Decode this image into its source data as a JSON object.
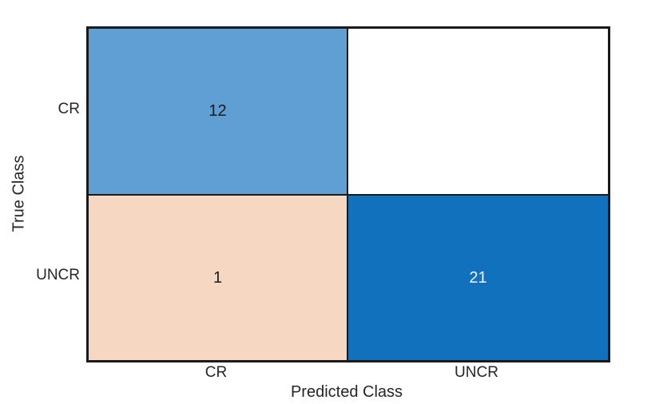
{
  "colors": {
    "background": "#ffffff",
    "grid_line": "#1a1a1a",
    "axis_text": "#262626",
    "diagonal_base_blue": "#1271bc",
    "diagonal_light_blue": "#5f9fd4",
    "offdiagonal_peach": "#f6d7c1",
    "empty_cell_white": "#ffffff",
    "value_text_dark": "#1a1a1a",
    "value_text_light": "#f2f4f6"
  },
  "chart_data": {
    "type": "heatmap",
    "subtype": "confusion-matrix",
    "title": "",
    "xlabel": "Predicted Class",
    "ylabel": "True Class",
    "x_categories": [
      "CR",
      "UNCR"
    ],
    "y_categories": [
      "CR",
      "UNCR"
    ],
    "matrix_rows_true_by_pred": [
      [
        12,
        0
      ],
      [
        1,
        21
      ]
    ],
    "legend_position": "none",
    "grid": "cell-borders-only",
    "cells": [
      {
        "row": "CR",
        "col": "CR",
        "value": "12",
        "count": 12,
        "color": "#5f9fd4",
        "text_color": "#1a1a1a"
      },
      {
        "row": "CR",
        "col": "UNCR",
        "value": "",
        "count": 0,
        "color": "#ffffff",
        "text_color": "#1a1a1a"
      },
      {
        "row": "UNCR",
        "col": "CR",
        "value": "1",
        "count": 1,
        "color": "#f6d7c1",
        "text_color": "#1a1a1a"
      },
      {
        "row": "UNCR",
        "col": "UNCR",
        "value": "21",
        "count": 21,
        "color": "#1271bc",
        "text_color": "#f2f4f6"
      }
    ]
  }
}
